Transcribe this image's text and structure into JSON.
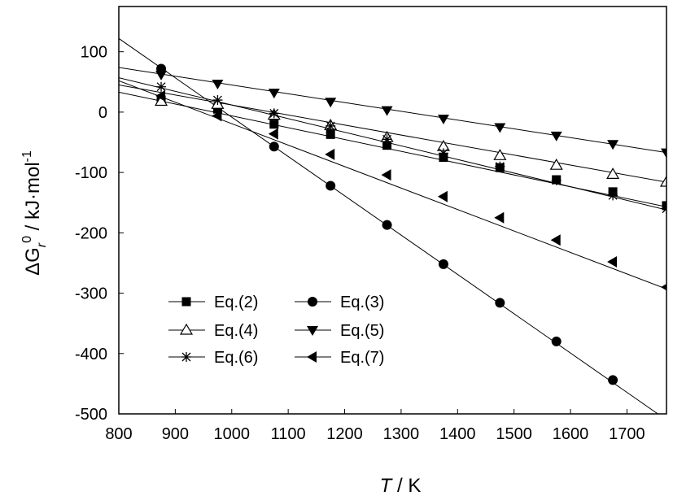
{
  "chart_data": {
    "type": "line",
    "xlabel": "T / K",
    "ylabel": "ΔG_r^0 / kJ·mol^-1",
    "xlim": [
      800,
      1770
    ],
    "ylim": [
      -500,
      175
    ],
    "xticks": [
      800,
      900,
      1000,
      1100,
      1200,
      1300,
      1400,
      1500,
      1600,
      1700
    ],
    "yticks": [
      -500,
      -400,
      -300,
      -200,
      -100,
      0,
      100
    ],
    "grid": false,
    "legend": {
      "placement": "lower-left",
      "columns": 2
    },
    "series": [
      {
        "name": "Eq.(2)",
        "marker": "square-filled",
        "color": "#000000",
        "line": [
          [
            800,
            33
          ],
          [
            1770,
            -157
          ]
        ],
        "x": [
          875,
          975,
          1075,
          1175,
          1275,
          1375,
          1475,
          1575,
          1675,
          1770
        ],
        "y": [
          20,
          5,
          -20,
          -37,
          -55,
          -75,
          -92,
          -112,
          -132,
          -155
        ]
      },
      {
        "name": "Eq.(3)",
        "marker": "circle-filled",
        "color": "#000000",
        "line": [
          [
            800,
            122
          ],
          [
            1770,
            -510
          ]
        ],
        "x": [
          875,
          1075,
          1175,
          1275,
          1375,
          1475,
          1575,
          1675
        ],
        "y": [
          72,
          -57,
          -122,
          -187,
          -252,
          -316,
          -380,
          -444
        ]
      },
      {
        "name": "Eq.(4)",
        "marker": "triangle-up-open",
        "color": "#000000",
        "line": [
          [
            800,
            45
          ],
          [
            1770,
            -116
          ]
        ],
        "x": [
          875,
          975,
          1075,
          1175,
          1275,
          1375,
          1475,
          1575,
          1675,
          1770
        ],
        "y": [
          18,
          13,
          -5,
          -22,
          -42,
          -57,
          -72,
          -88,
          -103,
          -116
        ]
      },
      {
        "name": "Eq.(5)",
        "marker": "triangle-down-filled",
        "color": "#000000",
        "line": [
          [
            800,
            74
          ],
          [
            1770,
            -67
          ]
        ],
        "x": [
          875,
          975,
          1075,
          1175,
          1275,
          1375,
          1475,
          1575,
          1675,
          1770
        ],
        "y": [
          62,
          47,
          32,
          17,
          3,
          -11,
          -25,
          -39,
          -53,
          -67
        ]
      },
      {
        "name": "Eq.(6)",
        "marker": "asterisk",
        "color": "#000000",
        "line": [
          [
            800,
            57
          ],
          [
            1770,
            -162
          ]
        ],
        "x": [
          875,
          975,
          1075,
          1175,
          1275,
          1375,
          1475,
          1575,
          1675,
          1770
        ],
        "y": [
          42,
          20,
          -2,
          -23,
          -45,
          -68,
          -90,
          -113,
          -138,
          -160
        ]
      },
      {
        "name": "Eq.(7)",
        "marker": "triangle-left-filled",
        "color": "#000000",
        "line": [
          [
            800,
            52
          ],
          [
            1770,
            -293
          ]
        ],
        "x": [
          875,
          975,
          1075,
          1175,
          1275,
          1375,
          1475,
          1575,
          1675,
          1770
        ],
        "y": [
          27,
          -6,
          -36,
          -70,
          -104,
          -140,
          -175,
          -212,
          -248,
          -290
        ]
      }
    ]
  }
}
